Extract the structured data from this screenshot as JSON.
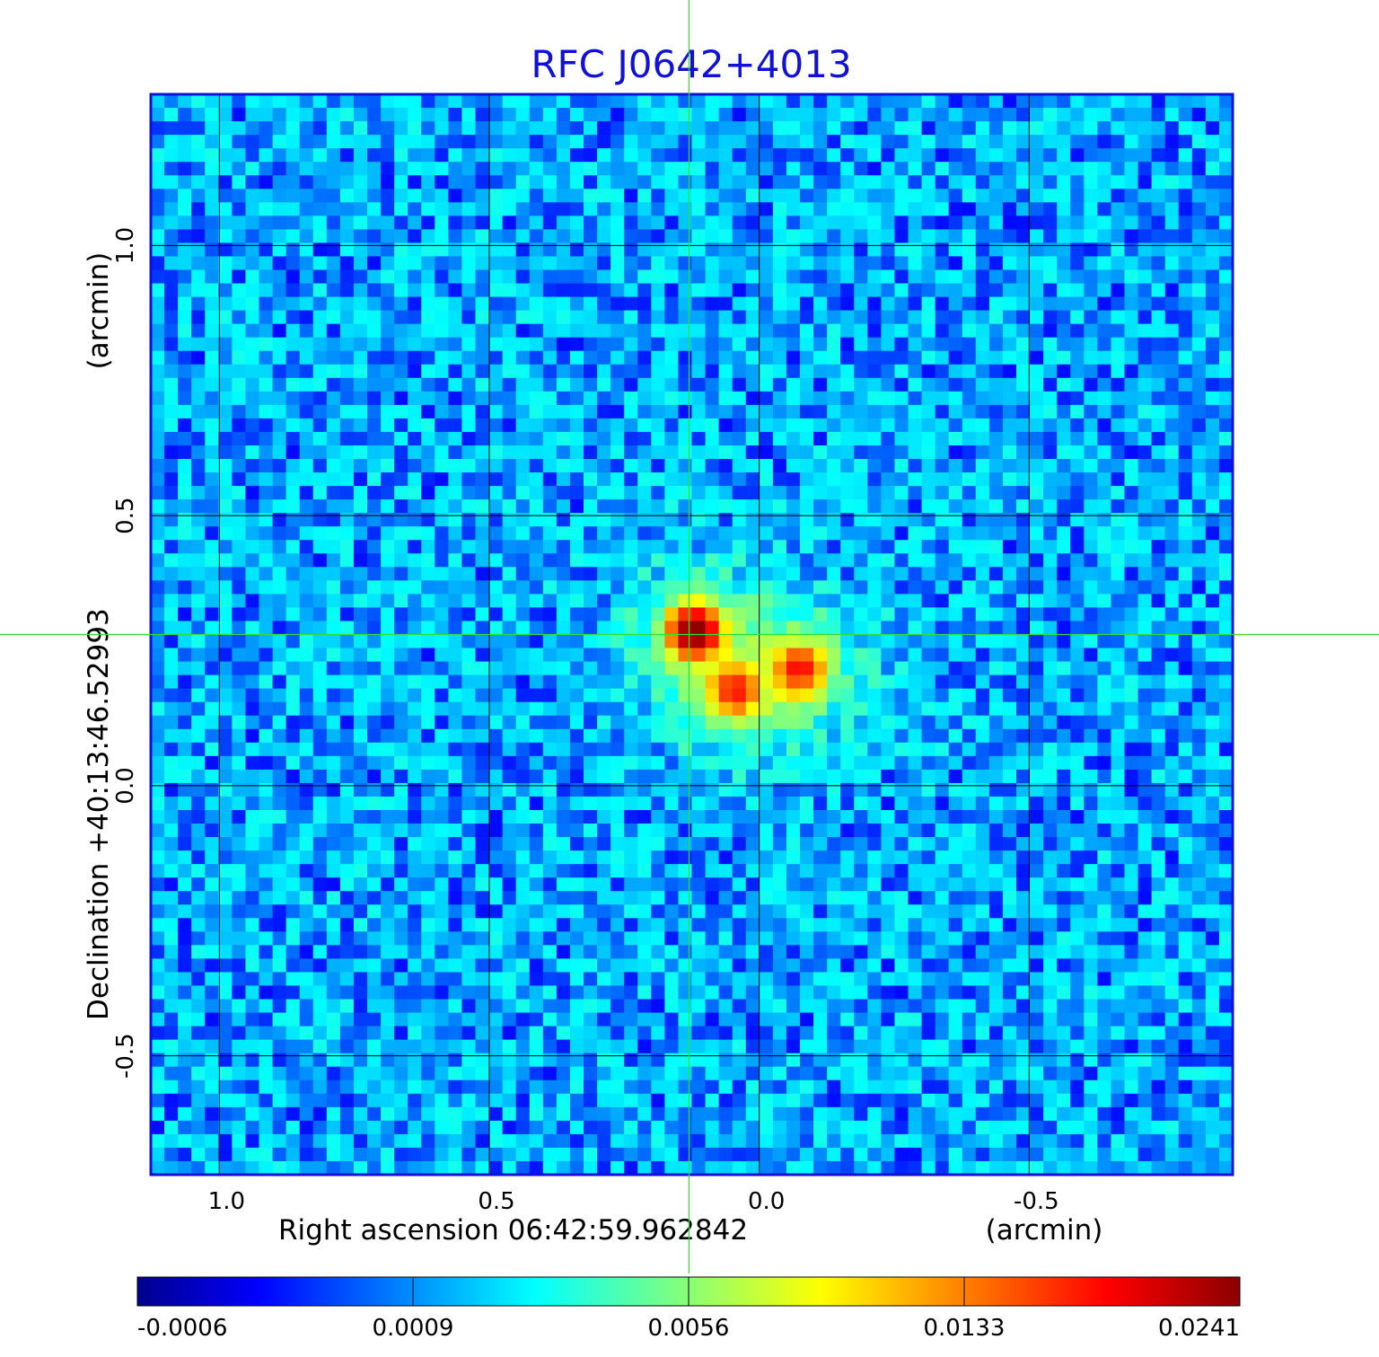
{
  "chart_data": {
    "type": "heatmap",
    "title": "RFC J0642+4013",
    "xlabel": "Right ascension  06:42:59.962842",
    "xunit": "(arcmin)",
    "ylabel": "Declination  +40:13:46.52993",
    "yunit": "(arcmin)",
    "x_axis_reversed": true,
    "xlim": [
      1.127,
      -0.877
    ],
    "ylim": [
      -0.72,
      1.28
    ],
    "x_ticks": [
      {
        "value": 1.0,
        "label": "1.0"
      },
      {
        "value": 0.5,
        "label": "0.5"
      },
      {
        "value": 0.0,
        "label": "0.0"
      },
      {
        "value": -0.5,
        "label": "-0.5"
      }
    ],
    "y_ticks": [
      {
        "value": 1.0,
        "label": "1.0"
      },
      {
        "value": 0.5,
        "label": "0.5"
      },
      {
        "value": 0.0,
        "label": "0.0"
      },
      {
        "value": -0.5,
        "label": "-0.5"
      }
    ],
    "grid": true,
    "colormap": "jet",
    "colorbar": {
      "position": "bottom",
      "tick_labels": [
        "-0.0006",
        "0.0009",
        "0.0056",
        "0.0133",
        "0.0241"
      ],
      "colors": [
        "#00008c",
        "#0000ff",
        "#00ffff",
        "#ffff00",
        "#ff0000",
        "#8c0000"
      ]
    },
    "crosshair": {
      "x": 0.13,
      "y": 0.28,
      "color": "#30e030"
    },
    "background_level": 0.0003,
    "sources": [
      {
        "x": 0.12,
        "y": 0.285,
        "peak": 0.0241
      },
      {
        "x": -0.075,
        "y": 0.215,
        "peak": 0.0115
      },
      {
        "x": 0.045,
        "y": 0.175,
        "peak": 0.0105
      }
    ]
  }
}
